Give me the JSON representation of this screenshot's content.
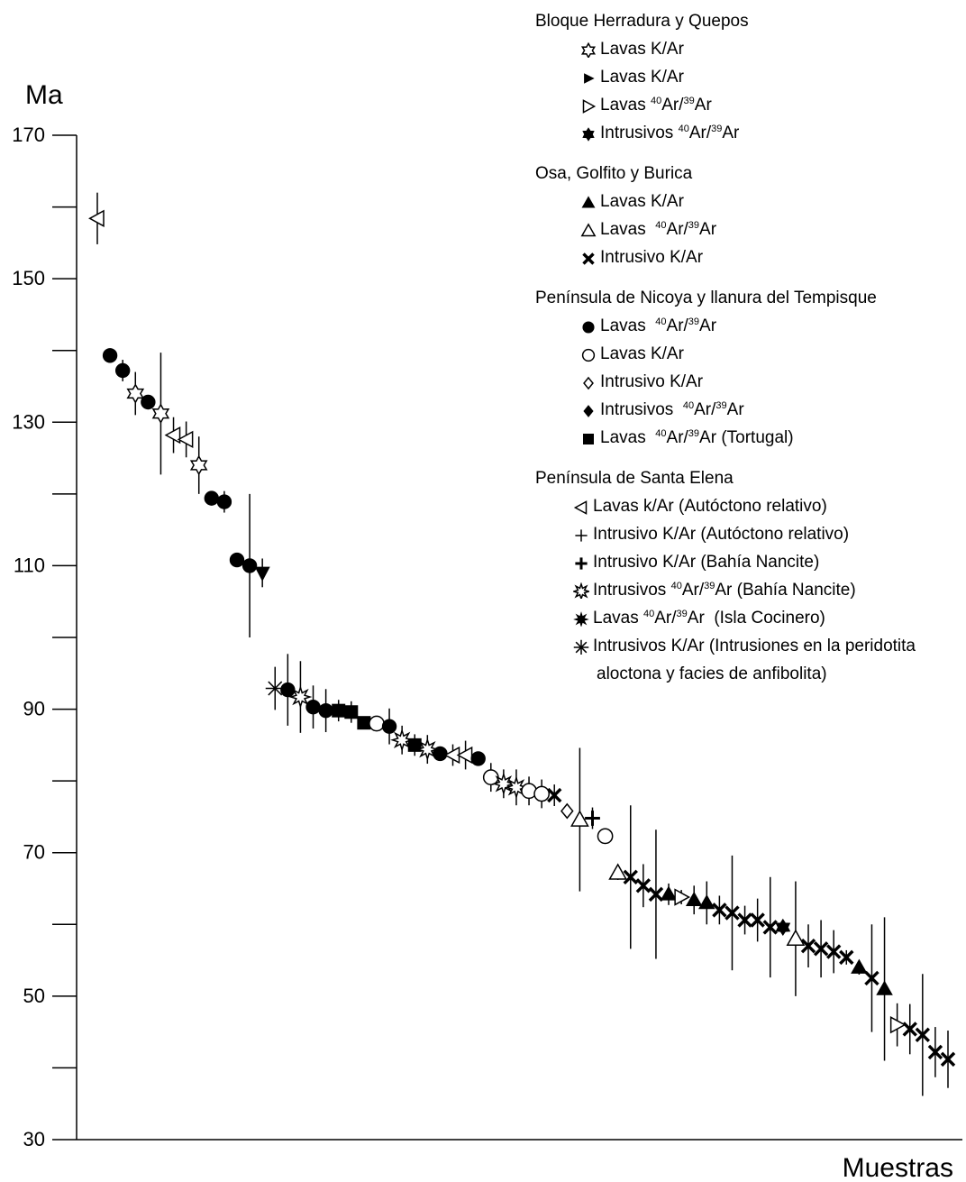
{
  "chart_data": {
    "type": "scatter",
    "ylabel": "Ma",
    "xlabel": "Muestras",
    "ylim": [
      30,
      170
    ],
    "yticks": [
      "170",
      "150",
      "130",
      "110",
      "90",
      "70",
      "50",
      "30"
    ],
    "grid": false,
    "legend_position": "top-right",
    "error_bars": true,
    "legend_groups": [
      {
        "title": "Bloque Herradura y Quepos",
        "items": [
          {
            "marker": "hexagram-open",
            "text": "Lavas K/Ar"
          },
          {
            "marker": "triangle-right-filled",
            "text": "Lavas K/Ar"
          },
          {
            "marker": "triangle-right-open",
            "text": "Lavas ",
            "sup1": "40",
            "mid": "Ar/",
            "sup2": "39",
            "tail": "Ar"
          },
          {
            "marker": "hexagram-filled",
            "text": "Intrusivos ",
            "sup1": "40",
            "mid": "Ar/",
            "sup2": "39",
            "tail": "Ar"
          }
        ]
      },
      {
        "title": "Osa, Golfito y Burica",
        "items": [
          {
            "marker": "triangle-up-filled",
            "text": "Lavas K/Ar"
          },
          {
            "marker": "triangle-up-open",
            "text": "Lavas  ",
            "sup1": "40",
            "mid": "Ar/",
            "sup2": "39",
            "tail": "Ar"
          },
          {
            "marker": "x-bold",
            "text": "Intrusivo K/Ar"
          }
        ]
      },
      {
        "title": "Península de Nicoya y llanura del Tempisque",
        "items": [
          {
            "marker": "circle-filled",
            "text": "Lavas  ",
            "sup1": "40",
            "mid": "Ar/",
            "sup2": "39",
            "tail": "Ar"
          },
          {
            "marker": "circle-open",
            "text": "Lavas K/Ar"
          },
          {
            "marker": "diamond-open",
            "text": "Intrusivo K/Ar"
          },
          {
            "marker": "diamond-filled",
            "text": "Intrusivos  ",
            "sup1": "40",
            "mid": "Ar/",
            "sup2": "39",
            "tail": "Ar"
          },
          {
            "marker": "square-filled",
            "text": "Lavas  ",
            "sup1": "40",
            "mid": "Ar/",
            "sup2": "39",
            "tail": "Ar (Tortugal)"
          }
        ]
      },
      {
        "title": "Península de Santa Elena",
        "items": [
          {
            "marker": "triangle-left-open",
            "text": "Lavas k/Ar (Autóctono relativo)"
          },
          {
            "marker": "plus-thin",
            "text": "Intrusivo K/Ar (Autóctono relativo)"
          },
          {
            "marker": "plus-bold",
            "text": "Intrusivo K/Ar (Bahía Nancite)"
          },
          {
            "marker": "star8-open",
            "text": "Intrusivos ",
            "sup1": "40",
            "mid": "Ar/",
            "sup2": "39",
            "tail": "Ar (Bahía Nancite)"
          },
          {
            "marker": "star8-filled",
            "text": "Lavas ",
            "sup1": "40",
            "mid": "Ar/",
            "sup2": "39",
            "tail": "Ar  (Isla Cocinero)"
          },
          {
            "marker": "asterisk-thin",
            "text": "Intrusivos K/Ar (Intrusiones en la peridotita",
            "line2": "aloctona y facies de anfibolita)"
          }
        ]
      }
    ],
    "points": [
      {
        "i": 1,
        "y": 158.4,
        "err": 3.6,
        "m": "triangle-left-open"
      },
      {
        "i": 2,
        "y": 139.3,
        "err": 1.0,
        "m": "circle-filled"
      },
      {
        "i": 3,
        "y": 137.2,
        "err": 1.5,
        "m": "circle-filled"
      },
      {
        "i": 4,
        "y": 134.0,
        "err": 3.0,
        "m": "hexagram-open"
      },
      {
        "i": 5,
        "y": 132.8,
        "err": 1.0,
        "m": "circle-filled"
      },
      {
        "i": 6,
        "y": 131.2,
        "err": 8.5,
        "m": "hexagram-open"
      },
      {
        "i": 7,
        "y": 128.2,
        "err": 2.5,
        "m": "triangle-left-open"
      },
      {
        "i": 8,
        "y": 127.6,
        "err": 2.5,
        "m": "triangle-left-open"
      },
      {
        "i": 9,
        "y": 124.0,
        "err": 4.0,
        "m": "hexagram-open"
      },
      {
        "i": 10,
        "y": 119.4,
        "err": 1.0,
        "m": "circle-filled"
      },
      {
        "i": 11,
        "y": 118.9,
        "err": 1.5,
        "m": "circle-filled"
      },
      {
        "i": 12,
        "y": 110.8,
        "err": 0.4,
        "m": "circle-filled"
      },
      {
        "i": 13,
        "y": 110.0,
        "err": 10.0,
        "m": "circle-filled"
      },
      {
        "i": 14,
        "y": 109.0,
        "err": 2.0,
        "m": "triangle-down-filled"
      },
      {
        "i": 15,
        "y": 92.9,
        "err": 3.0,
        "m": "asterisk-thin"
      },
      {
        "i": 16,
        "y": 92.7,
        "err": 5.0,
        "m": "circle-filled"
      },
      {
        "i": 17,
        "y": 91.7,
        "err": 5.0,
        "m": "star8-open"
      },
      {
        "i": 18,
        "y": 90.3,
        "err": 3.0,
        "m": "circle-filled"
      },
      {
        "i": 19,
        "y": 89.8,
        "err": 3.0,
        "m": "circle-filled"
      },
      {
        "i": 20,
        "y": 89.8,
        "err": 1.5,
        "m": "square-filled"
      },
      {
        "i": 21,
        "y": 89.6,
        "err": 1.5,
        "m": "square-filled"
      },
      {
        "i": 22,
        "y": 88.1,
        "err": 0.5,
        "m": "square-filled"
      },
      {
        "i": 23,
        "y": 88.0,
        "err": 0.5,
        "m": "circle-open"
      },
      {
        "i": 24,
        "y": 87.6,
        "err": 2.5,
        "m": "circle-filled"
      },
      {
        "i": 25,
        "y": 85.7,
        "err": 2.0,
        "m": "star8-open"
      },
      {
        "i": 26,
        "y": 85.0,
        "err": 1.5,
        "m": "square-filled"
      },
      {
        "i": 27,
        "y": 84.4,
        "err": 2.0,
        "m": "star8-open"
      },
      {
        "i": 28,
        "y": 83.8,
        "err": 1.0,
        "m": "circle-filled"
      },
      {
        "i": 29,
        "y": 83.6,
        "err": 1.5,
        "m": "triangle-left-open"
      },
      {
        "i": 30,
        "y": 83.6,
        "err": 2.0,
        "m": "triangle-left-open"
      },
      {
        "i": 31,
        "y": 83.1,
        "err": 0.5,
        "m": "circle-filled"
      },
      {
        "i": 32,
        "y": 80.5,
        "err": 2.0,
        "m": "circle-open"
      },
      {
        "i": 33,
        "y": 79.6,
        "err": 2.0,
        "m": "star8-open"
      },
      {
        "i": 34,
        "y": 79.1,
        "err": 2.5,
        "m": "star8-open"
      },
      {
        "i": 35,
        "y": 78.6,
        "err": 2.0,
        "m": "circle-open"
      },
      {
        "i": 36,
        "y": 78.2,
        "err": 2.0,
        "m": "circle-open"
      },
      {
        "i": 37,
        "y": 78.0,
        "err": 1.5,
        "m": "x-bold"
      },
      {
        "i": 38,
        "y": 75.8,
        "err": 1.0,
        "m": "diamond-open"
      },
      {
        "i": 39,
        "y": 74.6,
        "err": 10.0,
        "m": "triangle-up-open"
      },
      {
        "i": 40,
        "y": 74.8,
        "err": 1.5,
        "m": "plus-bold"
      },
      {
        "i": 41,
        "y": 72.3,
        "err": 1.0,
        "m": "circle-open"
      },
      {
        "i": 42,
        "y": 67.2,
        "err": 1.0,
        "m": "triangle-up-open"
      },
      {
        "i": 43,
        "y": 66.6,
        "err": 10.0,
        "m": "x-bold"
      },
      {
        "i": 44,
        "y": 65.4,
        "err": 3.0,
        "m": "x-bold"
      },
      {
        "i": 45,
        "y": 64.2,
        "err": 9.0,
        "m": "x-bold"
      },
      {
        "i": 46,
        "y": 64.2,
        "err": 1.5,
        "m": "triangle-up-filled"
      },
      {
        "i": 47,
        "y": 63.8,
        "err": 1.0,
        "m": "triangle-right-open"
      },
      {
        "i": 48,
        "y": 63.4,
        "err": 2.0,
        "m": "triangle-up-filled"
      },
      {
        "i": 49,
        "y": 63.0,
        "err": 3.0,
        "m": "triangle-up-filled"
      },
      {
        "i": 50,
        "y": 62.0,
        "err": 2.0,
        "m": "x-bold"
      },
      {
        "i": 51,
        "y": 61.6,
        "err": 8.0,
        "m": "x-bold"
      },
      {
        "i": 52,
        "y": 60.6,
        "err": 2.0,
        "m": "x-bold"
      },
      {
        "i": 53,
        "y": 60.6,
        "err": 3.0,
        "m": "x-bold"
      },
      {
        "i": 54,
        "y": 59.6,
        "err": 7.0,
        "m": "x-bold"
      },
      {
        "i": 55,
        "y": 59.6,
        "err": 1.0,
        "m": "hexagram-filled"
      },
      {
        "i": 56,
        "y": 58.0,
        "err": 8.0,
        "m": "triangle-up-open"
      },
      {
        "i": 57,
        "y": 57.0,
        "err": 3.0,
        "m": "x-bold"
      },
      {
        "i": 58,
        "y": 56.6,
        "err": 4.0,
        "m": "x-bold"
      },
      {
        "i": 59,
        "y": 56.2,
        "err": 3.0,
        "m": "x-bold"
      },
      {
        "i": 60,
        "y": 55.4,
        "err": 1.0,
        "m": "x-bold"
      },
      {
        "i": 61,
        "y": 54.0,
        "err": 1.0,
        "m": "triangle-up-filled"
      },
      {
        "i": 62,
        "y": 52.5,
        "err": 7.5,
        "m": "x-bold"
      },
      {
        "i": 63,
        "y": 51.0,
        "err": 10.0,
        "m": "triangle-up-filled"
      },
      {
        "i": 64,
        "y": 46.0,
        "err": 3.0,
        "m": "triangle-right-open"
      },
      {
        "i": 65,
        "y": 45.4,
        "err": 3.5,
        "m": "x-bold"
      },
      {
        "i": 66,
        "y": 44.6,
        "err": 8.5,
        "m": "x-bold"
      },
      {
        "i": 67,
        "y": 42.2,
        "err": 3.5,
        "m": "x-bold"
      },
      {
        "i": 68,
        "y": 41.2,
        "err": 4.0,
        "m": "x-bold"
      }
    ]
  }
}
